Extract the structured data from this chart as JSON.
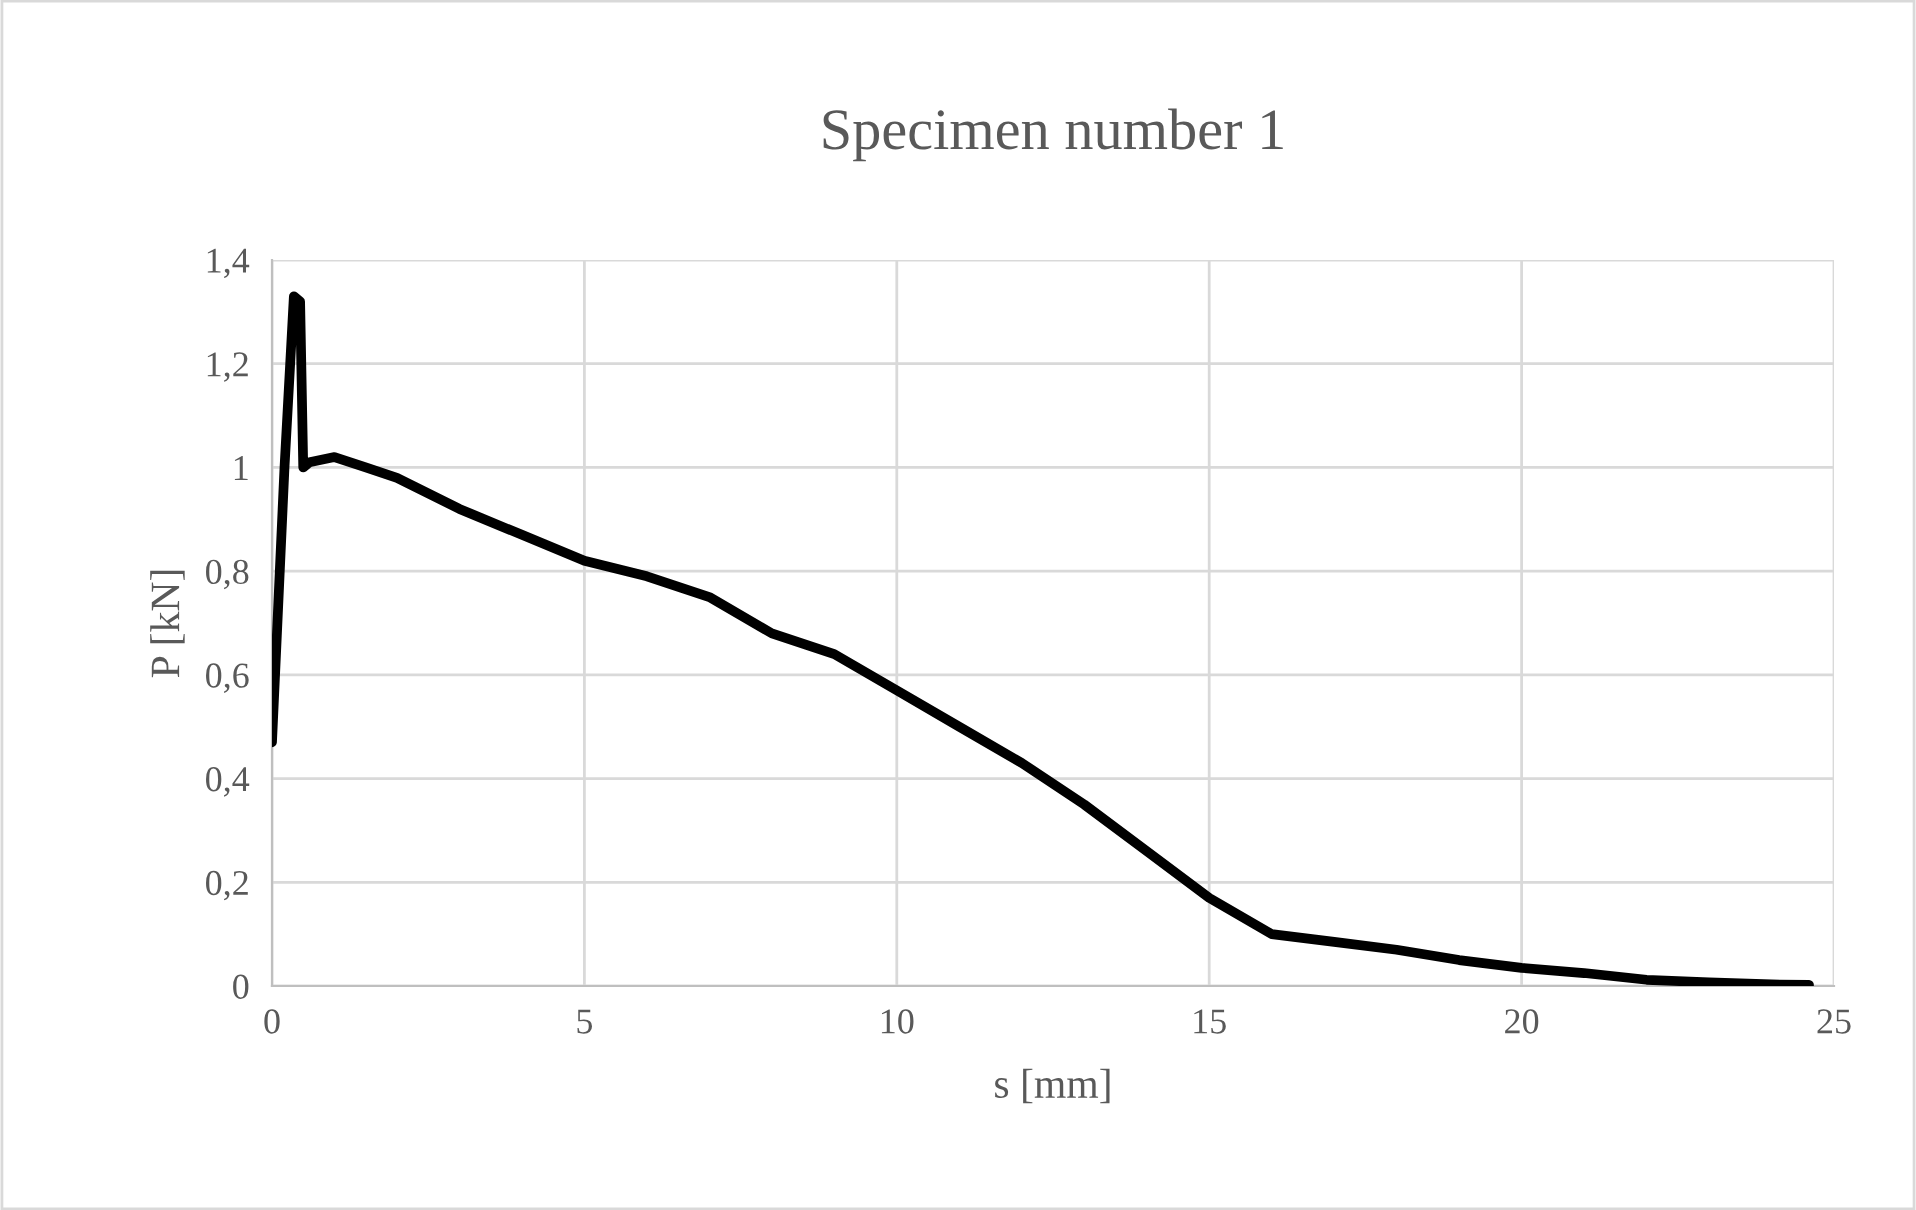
{
  "chart_data": {
    "type": "line",
    "title": "Specimen number 1",
    "xlabel": "s [mm]",
    "ylabel": "P [kN]",
    "series": [
      {
        "color": "#000000",
        "x": [
          0,
          0.2,
          0.35,
          0.45,
          0.5,
          0.6,
          1,
          1.5,
          2,
          3,
          4,
          5,
          6,
          7,
          8,
          9,
          10,
          11,
          12,
          13,
          14,
          15,
          16,
          17,
          18,
          19,
          20,
          21,
          22,
          23,
          24,
          24.6
        ],
        "values": [
          0.47,
          1.0,
          1.33,
          1.32,
          1.0,
          1.01,
          1.02,
          1.0,
          0.98,
          0.92,
          0.87,
          0.82,
          0.79,
          0.75,
          0.68,
          0.64,
          0.57,
          0.5,
          0.43,
          0.35,
          0.26,
          0.17,
          0.1,
          0.085,
          0.07,
          0.05,
          0.035,
          0.025,
          0.012,
          0.007,
          0.003,
          0.002
        ]
      }
    ],
    "xlim": [
      0,
      25
    ],
    "xticks": [
      0,
      5,
      10,
      15,
      20,
      25
    ],
    "ylim": [
      0,
      1.4
    ],
    "yticks": [
      0,
      {
        "value": 0.2,
        "label": "0,2"
      },
      {
        "value": 0.4,
        "label": "0,4"
      },
      {
        "value": 0.6,
        "label": "0,6"
      },
      {
        "value": 0.8,
        "label": "0,8"
      },
      1,
      {
        "value": 1.2,
        "label": "1,2"
      },
      {
        "value": 1.4,
        "label": "1,4"
      }
    ],
    "grid": true,
    "marker": "none",
    "line_style": "solid"
  }
}
